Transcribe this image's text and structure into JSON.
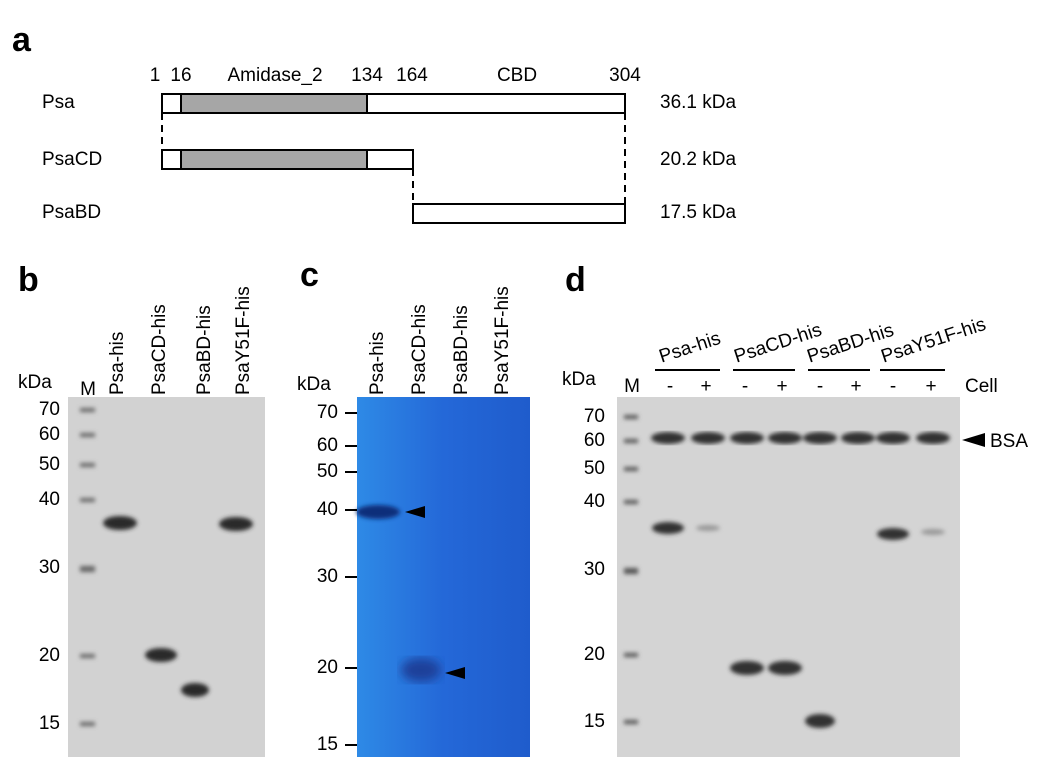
{
  "panel_a": {
    "label": "a",
    "positions": [
      1,
      16,
      134,
      164,
      304
    ],
    "domains": [
      "Amidase_2",
      "CBD"
    ],
    "constructs": [
      {
        "name": "Psa",
        "mass": "36.1 kDa"
      },
      {
        "name": "PsaCD",
        "mass": "20.2 kDa"
      },
      {
        "name": "PsaBD",
        "mass": "17.5 kDa"
      }
    ]
  },
  "panel_b": {
    "label": "b",
    "unit": "kDa",
    "marker_lane": "M",
    "lanes": [
      "Psa-his",
      "PsaCD-his",
      "PsaBD-his",
      "PsaY51F-his"
    ],
    "markers": [
      70,
      60,
      50,
      40,
      30,
      20,
      15
    ]
  },
  "panel_c": {
    "label": "c",
    "unit": "kDa",
    "lanes": [
      "Psa-his",
      "PsaCD-his",
      "PsaBD-his",
      "PsaY51F-his"
    ],
    "markers": [
      70,
      60,
      50,
      40,
      30,
      20,
      15
    ]
  },
  "panel_d": {
    "label": "d",
    "unit": "kDa",
    "marker_lane": "M",
    "groups": [
      "Psa-his",
      "PsaCD-his",
      "PsaBD-his",
      "PsaY51F-his"
    ],
    "conditions": [
      "-",
      "+"
    ],
    "condition_label": "Cell",
    "reference_band": "BSA",
    "markers": [
      70,
      60,
      50,
      40,
      30,
      20,
      15
    ]
  }
}
